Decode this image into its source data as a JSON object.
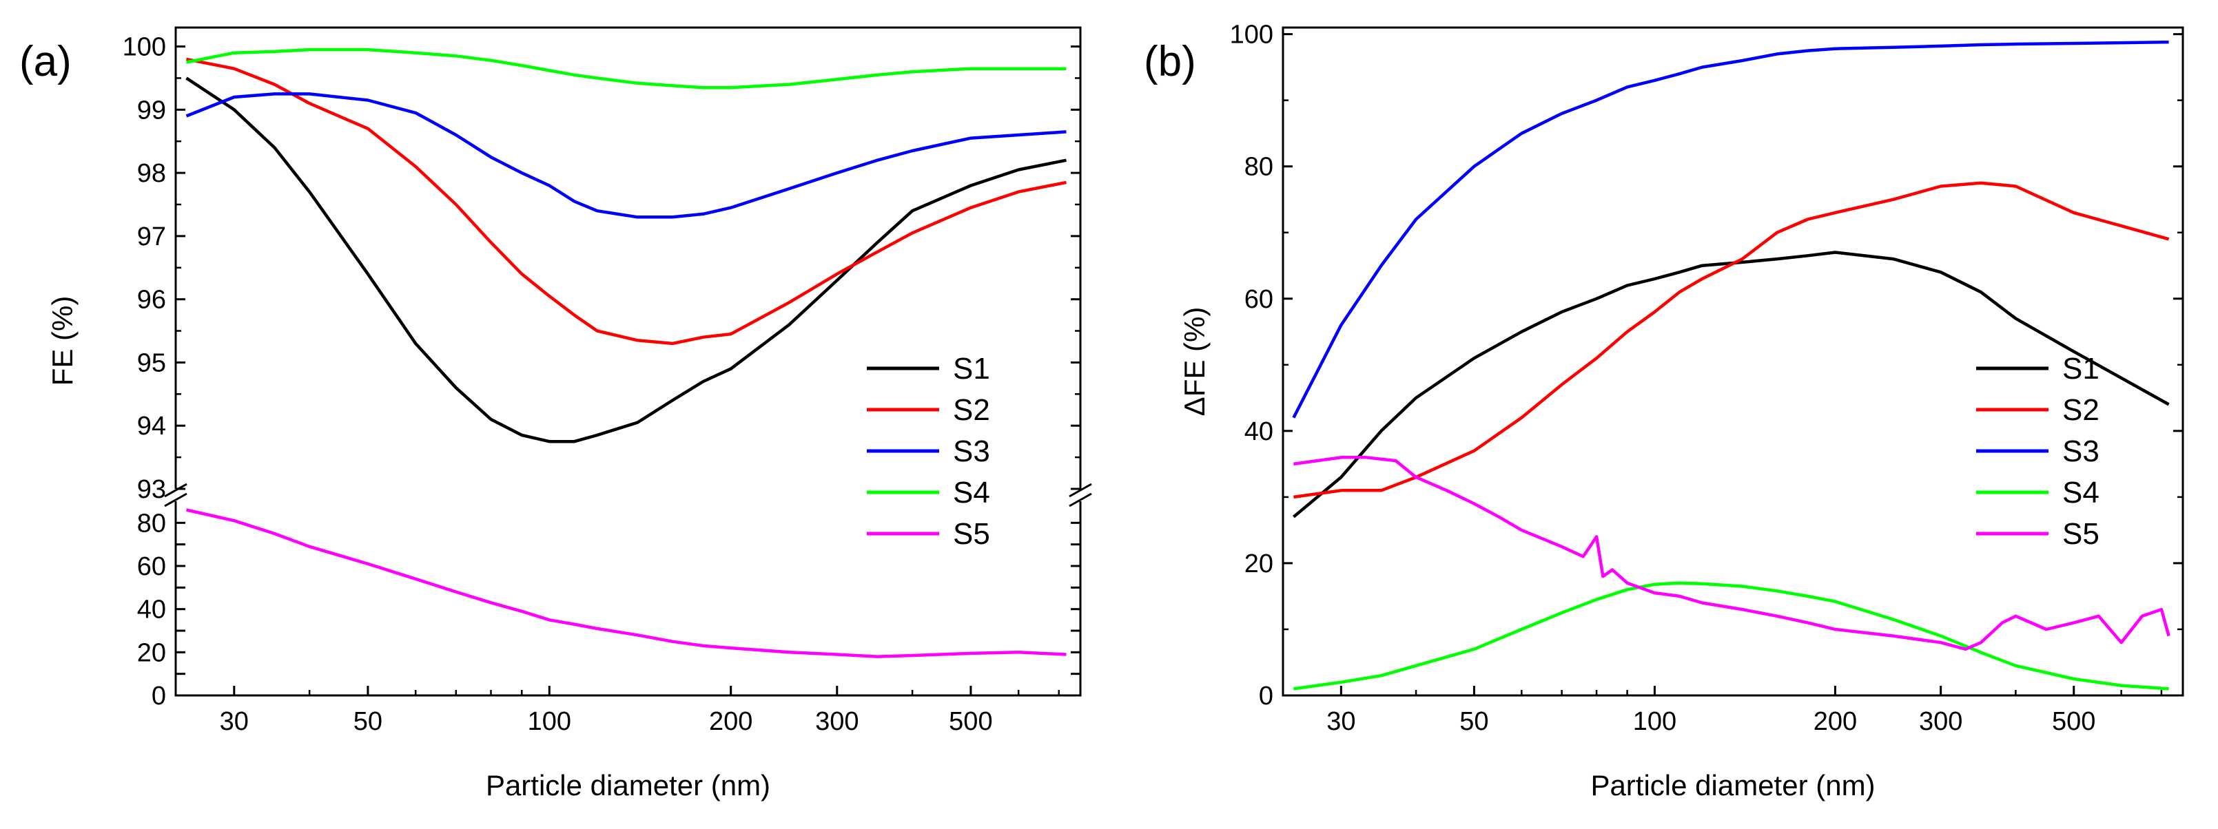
{
  "chart_data": [
    {
      "panel": "(a)",
      "type": "line",
      "xlabel": "Particle diameter (nm)",
      "ylabel": "FE (%)",
      "x_scale": "log",
      "xlim": [
        24,
        760
      ],
      "x_ticks": [
        30,
        50,
        100,
        200,
        300,
        500
      ],
      "broken_y_axis": true,
      "ylim_upper": [
        93,
        100.3
      ],
      "y_ticks_upper": [
        93,
        94,
        95,
        96,
        97,
        98,
        99,
        100
      ],
      "ylim_lower": [
        0,
        90
      ],
      "y_ticks_lower": [
        0,
        10,
        20,
        30,
        40,
        50,
        60,
        70,
        80
      ],
      "y_ticklabels_lower": [
        "0",
        "",
        "20",
        "",
        "40",
        "",
        "60",
        "",
        "80"
      ],
      "legend_position": "right",
      "series": [
        {
          "name": "S1",
          "color": "#000000",
          "segment": "upper",
          "x": [
            25,
            30,
            35,
            40,
            50,
            60,
            70,
            80,
            90,
            100,
            110,
            120,
            140,
            160,
            180,
            200,
            250,
            300,
            350,
            400,
            500,
            600,
            720
          ],
          "y": [
            99.5,
            99.0,
            98.4,
            97.7,
            96.4,
            95.3,
            94.6,
            94.1,
            93.85,
            93.75,
            93.75,
            93.85,
            94.05,
            94.4,
            94.7,
            94.9,
            95.6,
            96.3,
            96.9,
            97.4,
            97.8,
            98.05,
            98.2
          ]
        },
        {
          "name": "S2",
          "color": "#ff0000",
          "segment": "upper",
          "x": [
            25,
            30,
            35,
            40,
            50,
            60,
            70,
            80,
            90,
            100,
            110,
            120,
            140,
            160,
            180,
            200,
            250,
            300,
            350,
            400,
            500,
            600,
            720
          ],
          "y": [
            99.8,
            99.65,
            99.4,
            99.1,
            98.7,
            98.1,
            97.5,
            96.9,
            96.4,
            96.05,
            95.75,
            95.5,
            95.35,
            95.3,
            95.4,
            95.45,
            95.95,
            96.4,
            96.75,
            97.05,
            97.45,
            97.7,
            97.85
          ]
        },
        {
          "name": "S3",
          "color": "#0000ff",
          "segment": "upper",
          "x": [
            25,
            30,
            35,
            40,
            50,
            60,
            70,
            80,
            90,
            100,
            110,
            120,
            140,
            160,
            180,
            200,
            250,
            300,
            350,
            400,
            500,
            600,
            720
          ],
          "y": [
            98.9,
            99.2,
            99.25,
            99.25,
            99.15,
            98.95,
            98.6,
            98.25,
            98.0,
            97.8,
            97.55,
            97.4,
            97.3,
            97.3,
            97.35,
            97.45,
            97.75,
            98.0,
            98.2,
            98.35,
            98.55,
            98.6,
            98.65
          ]
        },
        {
          "name": "S4",
          "color": "#00ff00",
          "segment": "upper",
          "x": [
            25,
            30,
            35,
            40,
            50,
            60,
            70,
            80,
            90,
            100,
            110,
            120,
            140,
            160,
            180,
            200,
            250,
            300,
            350,
            400,
            500,
            600,
            720
          ],
          "y": [
            99.75,
            99.9,
            99.92,
            99.95,
            99.95,
            99.9,
            99.85,
            99.78,
            99.7,
            99.62,
            99.55,
            99.5,
            99.42,
            99.38,
            99.35,
            99.35,
            99.4,
            99.48,
            99.55,
            99.6,
            99.65,
            99.65,
            99.65
          ]
        },
        {
          "name": "S5",
          "color": "#ff00ff",
          "segment": "lower",
          "x": [
            25,
            30,
            35,
            40,
            50,
            60,
            70,
            80,
            90,
            100,
            110,
            120,
            140,
            160,
            180,
            200,
            250,
            300,
            350,
            400,
            500,
            600,
            720
          ],
          "y": [
            86,
            81,
            75,
            69,
            61,
            54,
            48,
            43,
            39,
            35,
            33,
            31,
            28,
            25,
            23,
            22,
            20,
            19,
            18,
            18.5,
            19.5,
            20,
            19
          ]
        }
      ]
    },
    {
      "panel": "(b)",
      "type": "line",
      "xlabel": "Particle diameter (nm)",
      "ylabel": "ΔFE (%)",
      "x_scale": "log",
      "xlim": [
        24,
        760
      ],
      "x_ticks": [
        30,
        50,
        100,
        200,
        300,
        500
      ],
      "ylim": [
        0,
        101
      ],
      "y_ticks": [
        0,
        20,
        40,
        60,
        80,
        100
      ],
      "legend_position": "right",
      "series": [
        {
          "name": "S1",
          "color": "#000000",
          "x": [
            25,
            30,
            35,
            40,
            50,
            60,
            70,
            80,
            90,
            100,
            110,
            120,
            140,
            160,
            180,
            200,
            250,
            300,
            350,
            400,
            500,
            600,
            720
          ],
          "y": [
            27,
            33,
            40,
            45,
            51,
            55,
            58,
            60,
            62,
            63,
            64,
            65,
            65.5,
            66,
            66.5,
            67,
            66,
            64,
            61,
            57,
            52,
            48,
            44
          ]
        },
        {
          "name": "S2",
          "color": "#ff0000",
          "x": [
            25,
            30,
            35,
            40,
            50,
            60,
            70,
            80,
            90,
            100,
            110,
            120,
            140,
            160,
            180,
            200,
            250,
            300,
            350,
            400,
            500,
            600,
            720
          ],
          "y": [
            30,
            31,
            31,
            33,
            37,
            42,
            47,
            51,
            55,
            58,
            61,
            63,
            66,
            70,
            72,
            73,
            75,
            77,
            77.5,
            77,
            73,
            71,
            69
          ]
        },
        {
          "name": "S3",
          "color": "#0000ff",
          "x": [
            25,
            30,
            35,
            40,
            50,
            60,
            70,
            80,
            90,
            100,
            110,
            120,
            140,
            160,
            180,
            200,
            250,
            300,
            350,
            400,
            500,
            600,
            720
          ],
          "y": [
            42,
            56,
            65,
            72,
            80,
            85,
            88,
            90,
            92,
            93,
            94,
            95,
            96,
            97,
            97.5,
            97.8,
            98,
            98.2,
            98.4,
            98.5,
            98.6,
            98.7,
            98.8
          ]
        },
        {
          "name": "S4",
          "color": "#00ff00",
          "x": [
            25,
            30,
            35,
            40,
            50,
            60,
            70,
            80,
            90,
            100,
            110,
            120,
            140,
            160,
            180,
            200,
            250,
            300,
            350,
            400,
            500,
            600,
            720
          ],
          "y": [
            1,
            2,
            3,
            4.5,
            7,
            10,
            12.5,
            14.5,
            16,
            16.8,
            17,
            16.9,
            16.5,
            15.8,
            15,
            14.2,
            11.5,
            9,
            6.5,
            4.5,
            2.5,
            1.5,
            1
          ]
        },
        {
          "name": "S5",
          "color": "#ff00ff",
          "x": [
            25,
            30,
            33,
            37,
            40,
            45,
            50,
            55,
            60,
            70,
            76,
            80,
            82,
            85,
            90,
            100,
            110,
            120,
            140,
            160,
            180,
            200,
            250,
            300,
            330,
            350,
            380,
            400,
            450,
            500,
            550,
            600,
            650,
            700,
            720
          ],
          "y": [
            35,
            36,
            36,
            35.5,
            33,
            31,
            29,
            27,
            25,
            22.5,
            21,
            24,
            18,
            19,
            17,
            15.5,
            15,
            14,
            13,
            12,
            11,
            10,
            9,
            8,
            7,
            8,
            11,
            12,
            10,
            11,
            12,
            8,
            12,
            13,
            9
          ]
        }
      ]
    }
  ],
  "legend": {
    "entries": [
      {
        "name": "S1",
        "color": "#000000"
      },
      {
        "name": "S2",
        "color": "#ff0000"
      },
      {
        "name": "S3",
        "color": "#0000ff"
      },
      {
        "name": "S4",
        "color": "#00ff00"
      },
      {
        "name": "S5",
        "color": "#ff00ff"
      }
    ]
  }
}
